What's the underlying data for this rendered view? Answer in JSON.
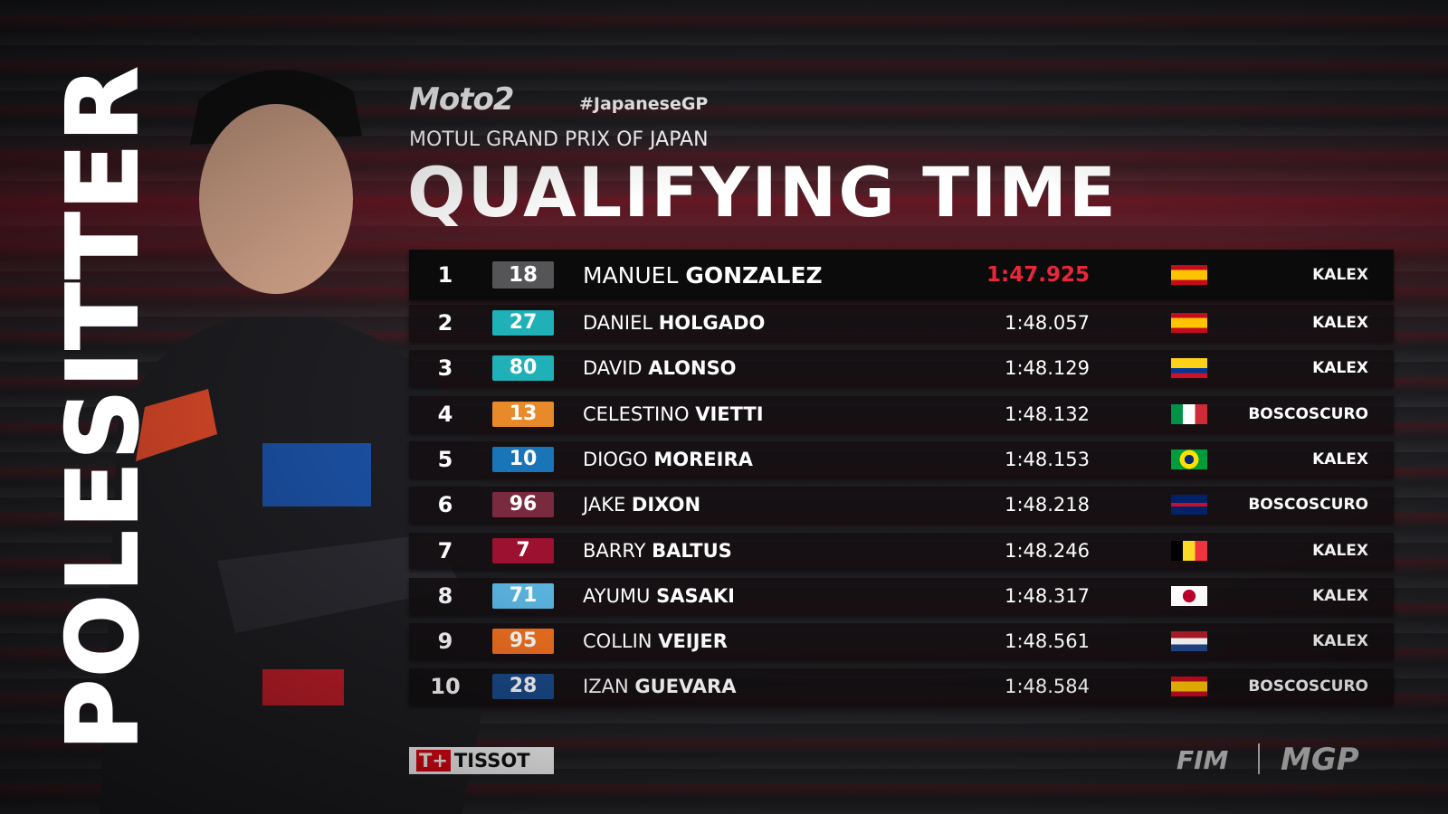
{
  "side_label": "POLESITTER",
  "header": {
    "series_logo": "Moto2",
    "hashtag": "#JapaneseGP",
    "event": "MOTUL GRAND PRIX OF JAPAN",
    "title": "QUALIFYING TIME"
  },
  "rows": [
    {
      "pos": "1",
      "num": "18",
      "first": "MANUEL",
      "last": "GONZALEZ",
      "time": "1:47.925",
      "flag": "spain",
      "team": "KALEX",
      "num_color": "#555558"
    },
    {
      "pos": "2",
      "num": "27",
      "first": "DANIEL",
      "last": "HOLGADO",
      "time": "1:48.057",
      "flag": "spain",
      "team": "KALEX",
      "num_color": "#1fb0b8"
    },
    {
      "pos": "3",
      "num": "80",
      "first": "DAVID",
      "last": "ALONSO",
      "time": "1:48.129",
      "flag": "colombia",
      "team": "KALEX",
      "num_color": "#1fb0b8"
    },
    {
      "pos": "4",
      "num": "13",
      "first": "CELESTINO",
      "last": "VIETTI",
      "time": "1:48.132",
      "flag": "italy",
      "team": "BOSCOSCURO",
      "num_color": "#e8892a"
    },
    {
      "pos": "5",
      "num": "10",
      "first": "DIOGO",
      "last": "MOREIRA",
      "time": "1:48.153",
      "flag": "brazil",
      "team": "KALEX",
      "num_color": "#1a74b8"
    },
    {
      "pos": "6",
      "num": "96",
      "first": "JAKE",
      "last": "DIXON",
      "time": "1:48.218",
      "flag": "uk",
      "team": "BOSCOSCURO",
      "num_color": "#7a2a3e"
    },
    {
      "pos": "7",
      "num": "7",
      "first": "BARRY",
      "last": "BALTUS",
      "time": "1:48.246",
      "flag": "belgium",
      "team": "KALEX",
      "num_color": "#9c1030"
    },
    {
      "pos": "8",
      "num": "71",
      "first": "AYUMU",
      "last": "SASAKI",
      "time": "1:48.317",
      "flag": "japan",
      "team": "KALEX",
      "num_color": "#5ab4e0"
    },
    {
      "pos": "9",
      "num": "95",
      "first": "COLLIN",
      "last": "VEIJER",
      "time": "1:48.561",
      "flag": "netherlands",
      "team": "KALEX",
      "num_color": "#f07020"
    },
    {
      "pos": "10",
      "num": "28",
      "first": "IZAN",
      "last": "GUEVARA",
      "time": "1:48.584",
      "flag": "spain",
      "team": "BOSCOSCURO",
      "num_color": "#1a4a8a"
    }
  ],
  "footer": {
    "sponsor": "TISSOT",
    "fim": "FIM",
    "mgp": "MGP"
  },
  "colors": {
    "pole_time": "#e8283a",
    "accent": "#b0182c"
  }
}
